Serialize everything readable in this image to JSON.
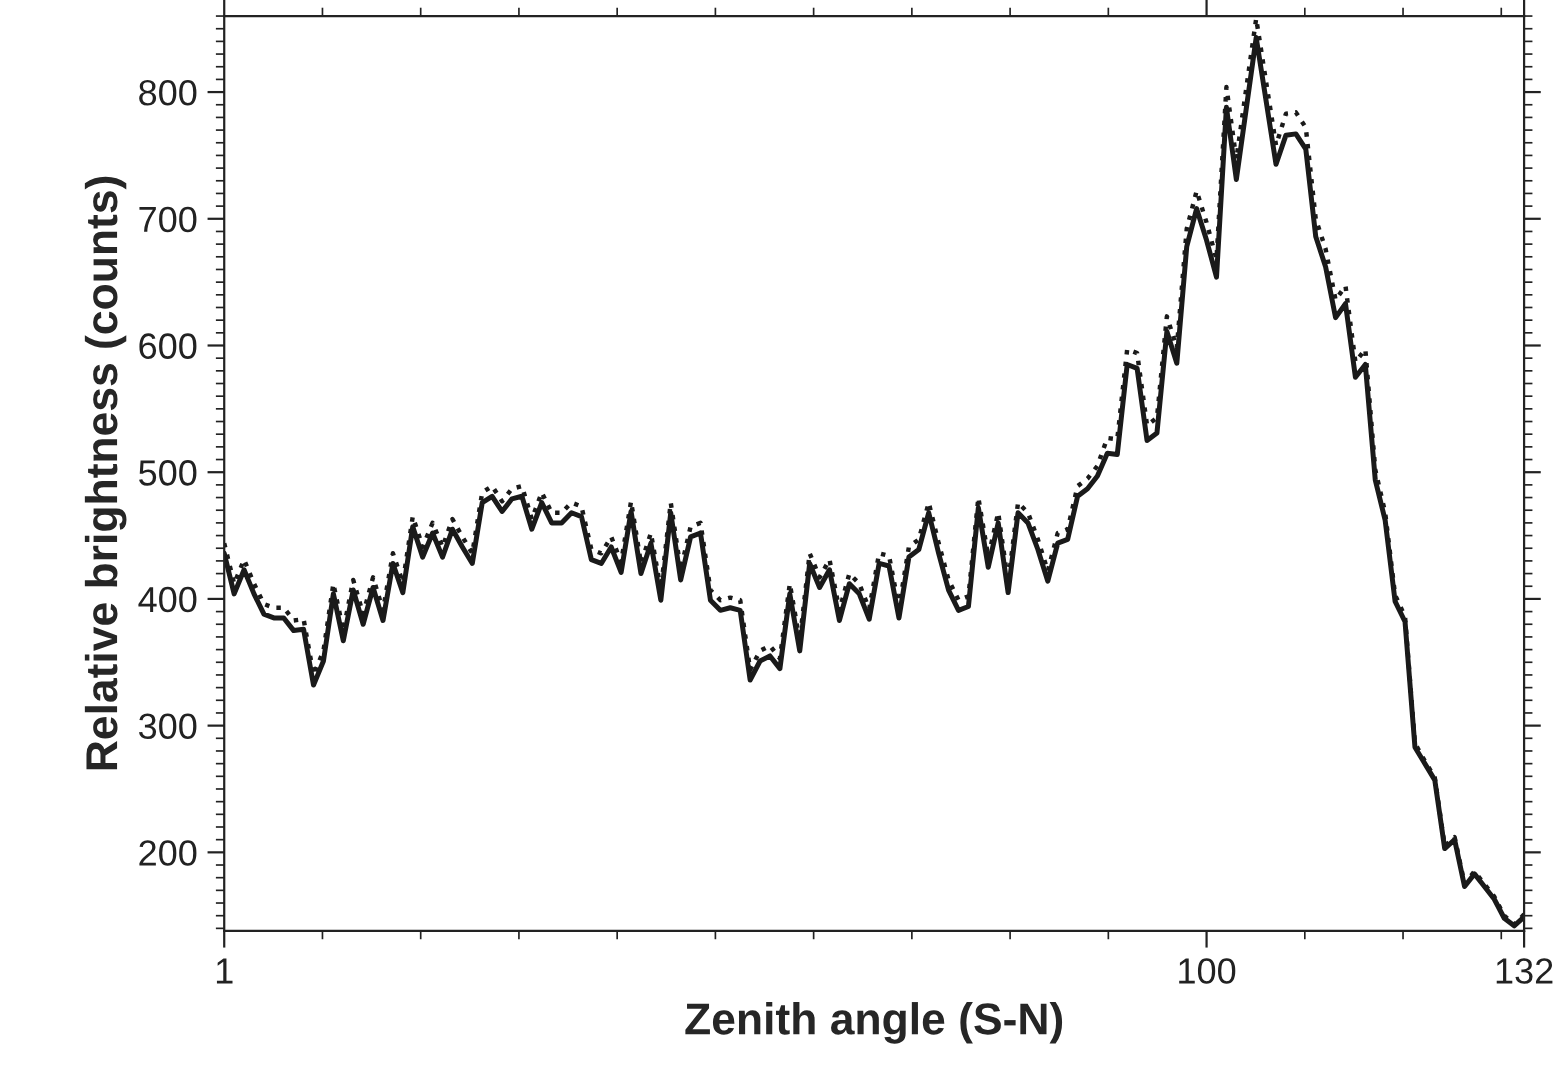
{
  "chart_data": {
    "type": "line",
    "xlabel": "Zenith angle (S-N)",
    "ylabel": "Relative brightness (counts)",
    "x": [
      1,
      2,
      3,
      4,
      5,
      6,
      7,
      8,
      9,
      10,
      11,
      12,
      13,
      14,
      15,
      16,
      17,
      18,
      19,
      20,
      21,
      22,
      23,
      24,
      25,
      26,
      27,
      28,
      29,
      30,
      31,
      32,
      33,
      34,
      35,
      36,
      37,
      38,
      39,
      40,
      41,
      42,
      43,
      44,
      45,
      46,
      47,
      48,
      49,
      50,
      51,
      52,
      53,
      54,
      55,
      56,
      57,
      58,
      59,
      60,
      61,
      62,
      63,
      64,
      65,
      66,
      67,
      68,
      69,
      70,
      71,
      72,
      73,
      74,
      75,
      76,
      77,
      78,
      79,
      80,
      81,
      82,
      83,
      84,
      85,
      86,
      87,
      88,
      89,
      90,
      91,
      92,
      93,
      94,
      95,
      96,
      97,
      98,
      99,
      100,
      101,
      102,
      103,
      104,
      105,
      106,
      107,
      108,
      109,
      110,
      111,
      112,
      113,
      114,
      115,
      116,
      117,
      118,
      119,
      120,
      121,
      122,
      123,
      124,
      125,
      126,
      127,
      128,
      129,
      130,
      131,
      132
    ],
    "series": [
      {
        "color": "#1a1a1a",
        "line_style": "solid",
        "values": [
          436,
          404,
          423,
          404,
          388,
          385,
          385,
          375,
          376,
          332,
          351,
          404,
          367,
          407,
          380,
          409,
          383,
          428,
          405,
          457,
          433,
          452,
          433,
          455,
          441,
          428,
          476,
          481,
          469,
          479,
          481,
          455,
          476,
          460,
          460,
          468,
          465,
          431,
          428,
          441,
          421,
          469,
          420,
          444,
          399,
          468,
          415,
          449,
          452,
          399,
          391,
          393,
          391,
          336,
          351,
          355,
          345,
          404,
          359,
          428,
          409,
          423,
          383,
          412,
          404,
          384,
          428,
          426,
          385,
          433,
          439,
          468,
          436,
          407,
          391,
          394,
          472,
          425,
          460,
          405,
          468,
          460,
          439,
          414,
          444,
          447,
          481,
          487,
          497,
          515,
          514,
          585,
          582,
          525,
          531,
          611,
          586,
          678,
          708,
          683,
          654,
          788,
          731,
          787,
          843,
          793,
          743,
          766,
          767,
          755,
          686,
          662,
          622,
          633,
          575,
          585,
          494,
          462,
          398,
          382,
          283,
          270,
          257,
          203,
          210,
          173,
          183,
          173,
          163,
          148,
          142,
          149
        ]
      },
      {
        "color": "#1a1a1a",
        "line_style": "dotted",
        "values": [
          444,
          412,
          431,
          412,
          396,
          393,
          393,
          383,
          384,
          340,
          359,
          412,
          375,
          415,
          388,
          417,
          391,
          436,
          413,
          465,
          441,
          460,
          441,
          463,
          449,
          436,
          484,
          489,
          477,
          487,
          489,
          463,
          484,
          468,
          468,
          476,
          473,
          439,
          436,
          449,
          429,
          477,
          428,
          452,
          407,
          476,
          423,
          457,
          460,
          407,
          399,
          401,
          399,
          344,
          359,
          363,
          353,
          412,
          367,
          436,
          417,
          431,
          391,
          420,
          412,
          392,
          436,
          434,
          393,
          441,
          447,
          476,
          444,
          415,
          399,
          402,
          480,
          433,
          468,
          413,
          476,
          468,
          447,
          422,
          452,
          455,
          489,
          495,
          505,
          527,
          526,
          597,
          594,
          537,
          543,
          623,
          598,
          692,
          722,
          697,
          668,
          804,
          747,
          803,
          858,
          808,
          758,
          783,
          784,
          772,
          700,
          676,
          636,
          647,
          587,
          597,
          502,
          468,
          403,
          386,
          286,
          272,
          259,
          205,
          212,
          175,
          185,
          175,
          165,
          150,
          143,
          151
        ]
      }
    ],
    "xlim": [
      1,
      132
    ],
    "ylim": [
      138,
      860
    ],
    "xticks": [
      1,
      100,
      132
    ],
    "yticks": [
      200,
      300,
      400,
      500,
      600,
      700,
      800
    ],
    "grid": false,
    "legend": false,
    "marker": "none"
  }
}
